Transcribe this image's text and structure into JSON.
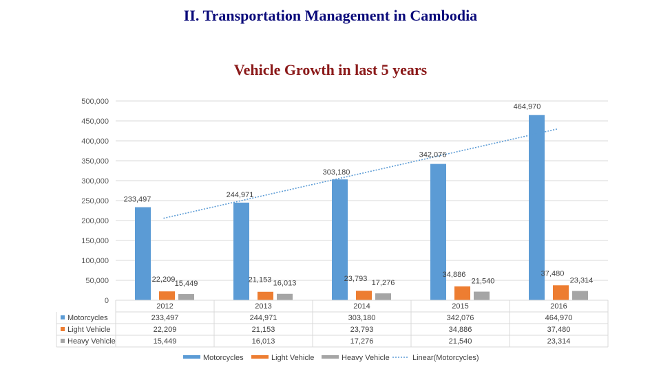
{
  "header": {
    "title": "II.  Transportation  Management  in Cambodia"
  },
  "chart_data": {
    "type": "bar",
    "title": "Vehicle Growth in last 5 years",
    "categories": [
      "2012",
      "2013",
      "2014",
      "2015",
      "2016"
    ],
    "series": [
      {
        "name": "Motorcycles",
        "color": "#5b9bd5",
        "values": [
          233497,
          244971,
          303180,
          342076,
          464970
        ],
        "labels": [
          "233,497",
          "244,971",
          "303,180",
          "342,076",
          "464,970"
        ]
      },
      {
        "name": "Light Vehicle",
        "color": "#ed7d31",
        "values": [
          22209,
          21153,
          23793,
          34886,
          37480
        ],
        "labels": [
          "22,209",
          "21,153",
          "23,793",
          "34,886",
          "37,480"
        ]
      },
      {
        "name": "Heavy Vehicle",
        "color": "#a5a5a5",
        "values": [
          15449,
          16013,
          17276,
          21540,
          23314
        ],
        "labels": [
          "15,449",
          "16,013",
          "17,276",
          "21,540",
          "23,314"
        ]
      }
    ],
    "trendline": {
      "name": "Linear(Motorcycles)",
      "series": "Motorcycles",
      "type": "linear",
      "color": "#5b9bd5"
    },
    "ylim": [
      0,
      500000
    ],
    "yticks": [
      0,
      50000,
      100000,
      150000,
      200000,
      250000,
      300000,
      350000,
      400000,
      450000,
      500000
    ],
    "ytick_labels": [
      "0",
      "50,000",
      "100,000",
      "150,000",
      "200,000",
      "250,000",
      "300,000",
      "350,000",
      "400,000",
      "450,000",
      "500,000"
    ],
    "grid": true,
    "data_table": true,
    "legend_position": "bottom",
    "legend": [
      "Motorcycles",
      "Light Vehicle",
      "Heavy Vehicle",
      "Linear(Motorcycles)"
    ]
  }
}
